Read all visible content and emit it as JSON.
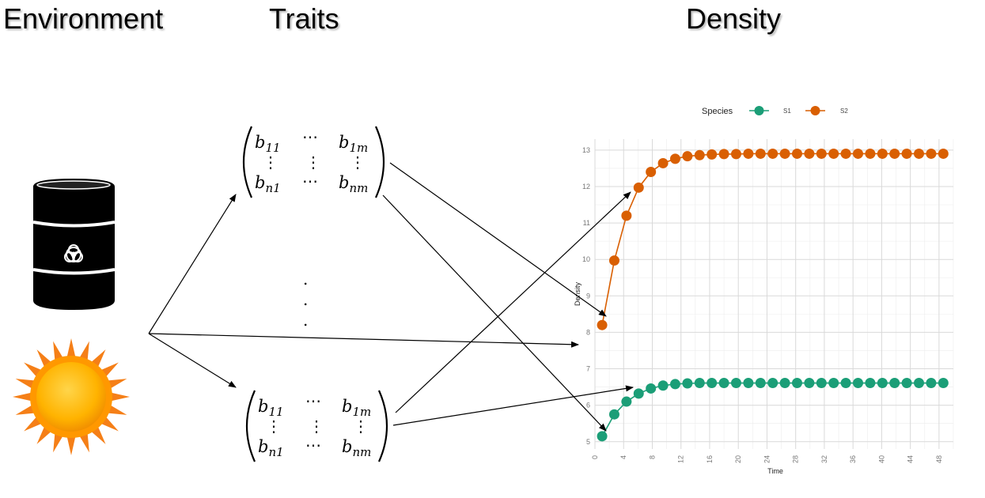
{
  "headings": {
    "environment": "Environment",
    "traits": "Traits",
    "density": "Density"
  },
  "matrix": {
    "top_left": "b",
    "top_left_sub": "11",
    "top_right": "b",
    "top_right_sub": "1m",
    "bottom_left": "b",
    "bottom_left_sub": "n1",
    "bottom_right": "b",
    "bottom_right_sub": "nm",
    "hdots": "⋯",
    "vdots": "⋮",
    "between_dots": "."
  },
  "icons": [
    "biohazard-barrel-icon",
    "sun-icon"
  ],
  "colors": {
    "S1": "#1b9e77",
    "S2": "#d95f02",
    "grid_major": "#d9d9d9",
    "grid_minor": "#ececec"
  },
  "chart_data": {
    "type": "line",
    "xlabel": "Time",
    "ylabel": "Density",
    "legend_title": "Species",
    "legend_position": "top",
    "xlim": [
      0,
      50
    ],
    "ylim": [
      4.8,
      13.3
    ],
    "x_ticks": [
      0,
      4,
      8,
      12,
      16,
      20,
      24,
      28,
      32,
      36,
      40,
      44,
      48
    ],
    "y_ticks": [
      5,
      6,
      7,
      8,
      9,
      10,
      11,
      12,
      13
    ],
    "grid": true,
    "x": [
      1,
      2.7,
      4.4,
      6.1,
      7.8,
      9.5,
      11.2,
      12.9,
      14.6,
      16.3,
      18,
      19.7,
      21.4,
      23.1,
      24.8,
      26.5,
      28.2,
      29.9,
      31.6,
      33.3,
      35,
      36.7,
      38.4,
      40.1,
      41.8,
      43.5,
      45.2,
      46.9,
      48.6
    ],
    "series": [
      {
        "name": "S1",
        "values": [
          5.15,
          5.75,
          6.1,
          6.32,
          6.46,
          6.54,
          6.58,
          6.6,
          6.61,
          6.61,
          6.61,
          6.61,
          6.61,
          6.61,
          6.61,
          6.61,
          6.61,
          6.61,
          6.61,
          6.61,
          6.61,
          6.61,
          6.61,
          6.61,
          6.61,
          6.61,
          6.61,
          6.61,
          6.61
        ]
      },
      {
        "name": "S2",
        "values": [
          8.2,
          9.97,
          11.2,
          11.97,
          12.4,
          12.64,
          12.76,
          12.83,
          12.86,
          12.88,
          12.89,
          12.89,
          12.9,
          12.9,
          12.9,
          12.9,
          12.9,
          12.9,
          12.9,
          12.9,
          12.9,
          12.9,
          12.9,
          12.9,
          12.9,
          12.9,
          12.9,
          12.9,
          12.9
        ]
      }
    ]
  }
}
